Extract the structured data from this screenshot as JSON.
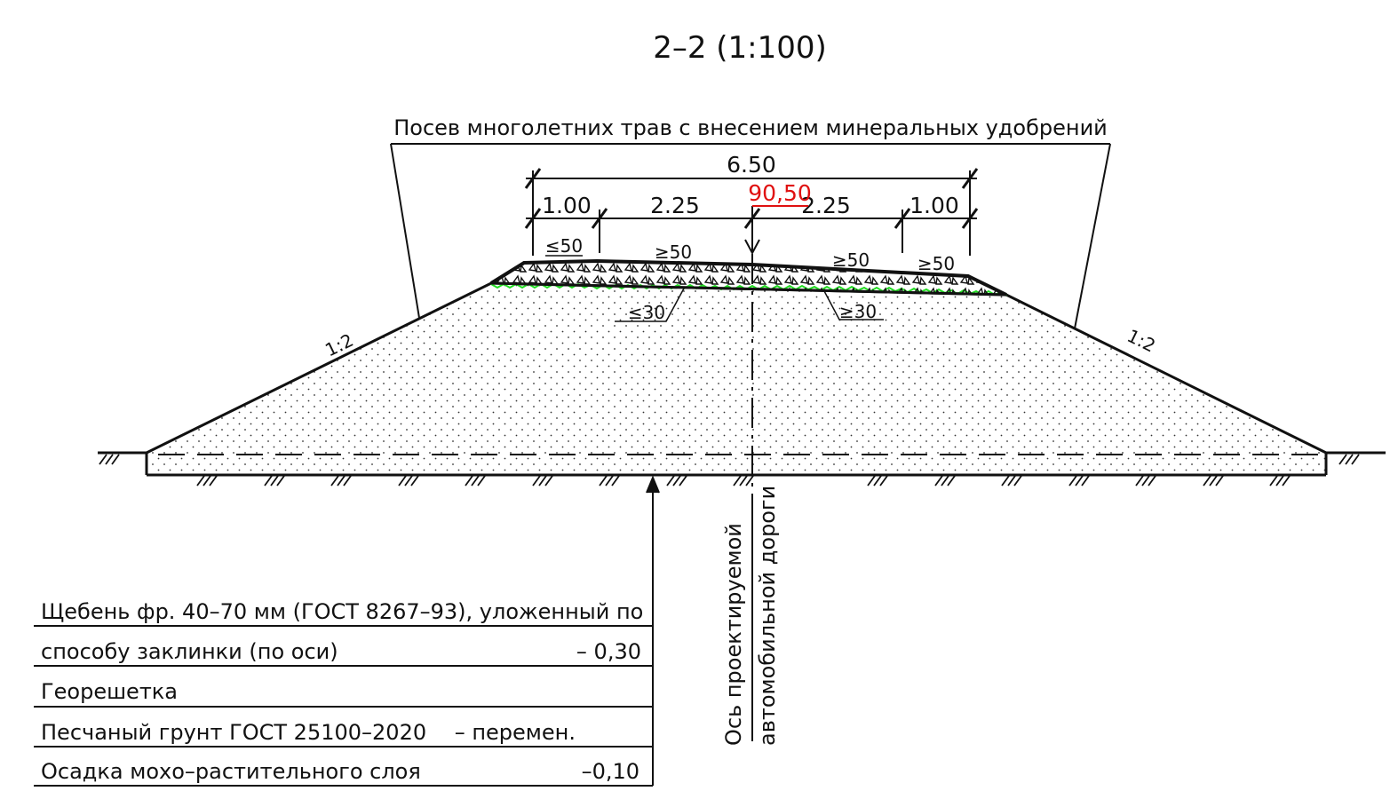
{
  "section_title": "2–2 (1:100)",
  "note_top": "Посев многолетних трав с внесением минеральных удобрений",
  "dimensions": {
    "total": "6.50",
    "left_shoulder": "1.00",
    "left_lane": "2.25",
    "right_lane": "2.25",
    "right_shoulder": "1.00"
  },
  "elevation_mark": "90,50",
  "thickness_labels": {
    "top_left": "≤50",
    "top_mid_left": "≥50",
    "top_mid_right": "≥50",
    "top_right": "≥50",
    "bottom_left": "≤30",
    "bottom_right": "≥30"
  },
  "slopes": {
    "left": "1:2",
    "right": "1:2"
  },
  "axis_label": {
    "line1": "Ось проектируемой",
    "line2": "автомобильной дороги"
  },
  "legend": [
    {
      "text": "Щебень фр. 40–70 мм (ГОСТ 8267–93), уложенный по",
      "value": ""
    },
    {
      "text": "способу заклинки (по оси)",
      "value": "– 0,30"
    },
    {
      "text": "Георешетка",
      "value": ""
    },
    {
      "text": "Песчаный грунт  ГОСТ 25100–2020",
      "value": "– перемен."
    },
    {
      "text": "Осадка мохо–растительного слоя",
      "value": "–0,10"
    }
  ],
  "colors": {
    "line": "#111111",
    "elevation": "#e01010",
    "geogrid": "#22dd22"
  }
}
